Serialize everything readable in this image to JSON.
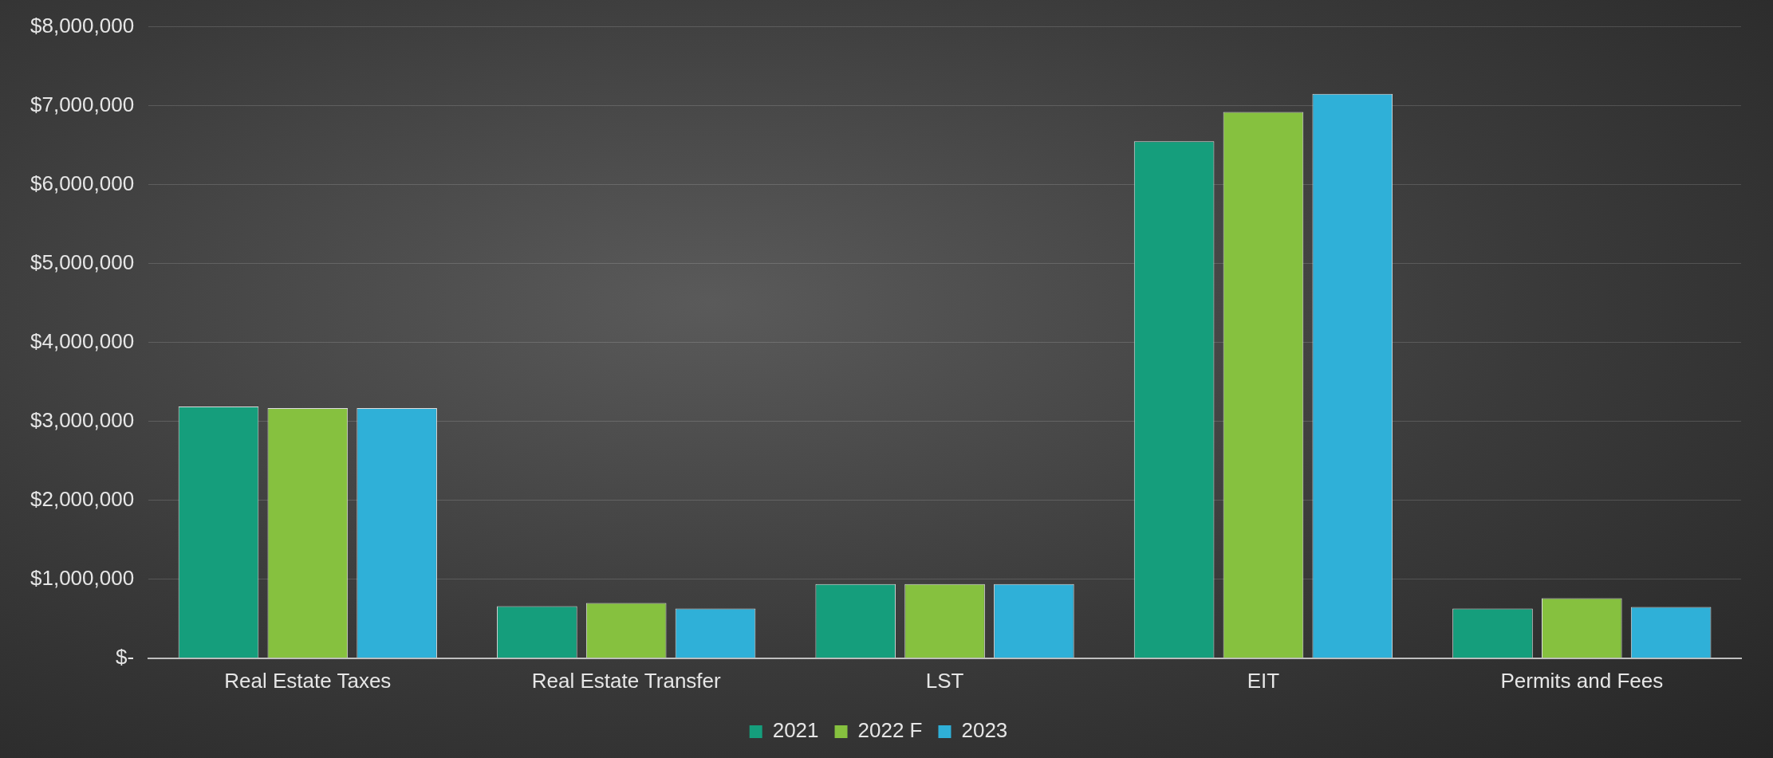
{
  "chart_data": {
    "type": "bar",
    "categories": [
      "Real Estate Taxes",
      "Real Estate Transfer",
      "LST",
      "EIT",
      "Permits and Fees"
    ],
    "series": [
      {
        "name": "2021",
        "color": "#159e7c",
        "values": [
          3190000,
          660000,
          940000,
          6550000,
          630000
        ]
      },
      {
        "name": "2022 F",
        "color": "#86c13f",
        "values": [
          3170000,
          700000,
          940000,
          6920000,
          760000
        ]
      },
      {
        "name": "2023",
        "color": "#2fb0d8",
        "values": [
          3170000,
          630000,
          940000,
          7150000,
          650000
        ]
      }
    ],
    "ylim": [
      0,
      8000000
    ],
    "yticks": [
      {
        "value": 0,
        "label": "$-"
      },
      {
        "value": 1000000,
        "label": "$1,000,000"
      },
      {
        "value": 2000000,
        "label": "$2,000,000"
      },
      {
        "value": 3000000,
        "label": "$3,000,000"
      },
      {
        "value": 4000000,
        "label": "$4,000,000"
      },
      {
        "value": 5000000,
        "label": "$5,000,000"
      },
      {
        "value": 6000000,
        "label": "$6,000,000"
      },
      {
        "value": 7000000,
        "label": "$7,000,000"
      },
      {
        "value": 8000000,
        "label": "$8,000,000"
      }
    ],
    "grid": "y",
    "legend": "bottom"
  }
}
